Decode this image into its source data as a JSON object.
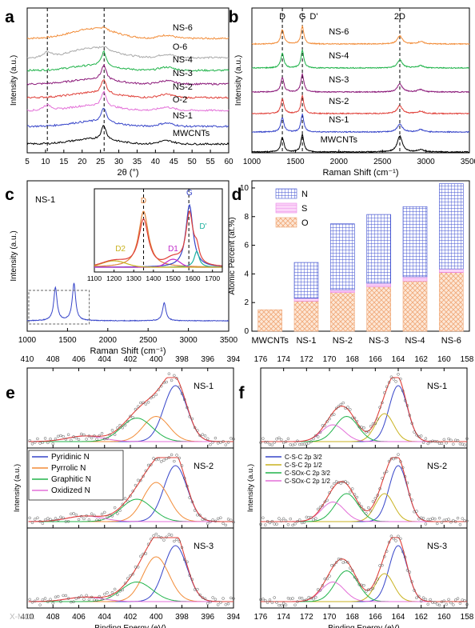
{
  "figure": {
    "watermark": "X-MOL"
  },
  "chart_data": [
    {
      "id": "a",
      "panel_label": "a",
      "type": "line",
      "xlabel": "2θ (°)",
      "ylabel": "Intensity (a.u.)",
      "xlim": [
        5,
        60
      ],
      "xticks": [
        5,
        10,
        15,
        20,
        25,
        30,
        35,
        40,
        45,
        50,
        55,
        60
      ],
      "y_ticks_shown": false,
      "dashed_lines_x": [
        10.5,
        26
      ],
      "series": [
        {
          "name": "NS-6",
          "color": "#F28C38",
          "label_at": [
            46,
            "above"
          ]
        },
        {
          "name": "O-6",
          "color": "#A9A9A9",
          "label_at": [
            46,
            "above"
          ]
        },
        {
          "name": "NS-4",
          "color": "#20B34A",
          "label_at": [
            46,
            "above"
          ]
        },
        {
          "name": "NS-3",
          "color": "#8B1A7A",
          "label_at": [
            46,
            "above"
          ]
        },
        {
          "name": "NS-2",
          "color": "#E0413A",
          "label_at": [
            46,
            "above"
          ]
        },
        {
          "name": "O-2",
          "color": "#E36FD8",
          "label_at": [
            46,
            "above"
          ]
        },
        {
          "name": "NS-1",
          "color": "#3745C9",
          "label_at": [
            46,
            "above"
          ]
        },
        {
          "name": "MWCNTs",
          "color": "#000000",
          "label_at": [
            46,
            "above"
          ]
        }
      ]
    },
    {
      "id": "b",
      "panel_label": "b",
      "type": "line",
      "xlabel": "Raman Shift (cm⁻¹)",
      "ylabel": "Intensity (a.u.)",
      "xlim": [
        1000,
        3500
      ],
      "xticks": [
        1000,
        1500,
        2000,
        2500,
        3000,
        3500
      ],
      "y_ticks_shown": false,
      "dashed_lines_x": [
        1350,
        1580,
        2700
      ],
      "peak_annotations": [
        {
          "label": "D",
          "x": 1350
        },
        {
          "label": "G",
          "x": 1580
        },
        {
          "label": "D'",
          "x": 1620
        },
        {
          "label": "2D",
          "x": 2700
        }
      ],
      "series": [
        {
          "name": "NS-6",
          "color": "#F28C38"
        },
        {
          "name": "NS-4",
          "color": "#20B34A"
        },
        {
          "name": "NS-3",
          "color": "#8B1A7A"
        },
        {
          "name": "NS-2",
          "color": "#E0413A"
        },
        {
          "name": "NS-1",
          "color": "#3745C9"
        },
        {
          "name": "MWCNTs",
          "color": "#000000"
        }
      ]
    },
    {
      "id": "c",
      "panel_label": "c",
      "type": "line",
      "sample_label": "NS-1",
      "xlabel": "Raman Shift (cm⁻¹)",
      "ylabel": "Intensity (a.u.)",
      "xlim": [
        1000,
        3500
      ],
      "xticks": [
        1000,
        1500,
        2000,
        2500,
        3000,
        3500
      ],
      "series": [
        {
          "name": "NS-1",
          "color": "#3745C9",
          "peaks": [
            {
              "x": 1350,
              "h": 0.55
            },
            {
              "x": 1580,
              "h": 0.62
            },
            {
              "x": 2700,
              "h": 0.3
            }
          ]
        }
      ],
      "inset": {
        "xlim": [
          1100,
          1750
        ],
        "xticks": [
          1100,
          1200,
          1300,
          1400,
          1500,
          1600,
          1700
        ],
        "dashed_lines_x": [
          1350,
          1580
        ],
        "components": [
          {
            "label": "D",
            "x": 1350,
            "color": "#E0823A"
          },
          {
            "label": "G",
            "x": 1583,
            "color": "#3745C9"
          },
          {
            "label": "D'",
            "x": 1620,
            "color": "#20B3A0"
          },
          {
            "label": "D1",
            "x": 1500,
            "color": "#C02AC9"
          },
          {
            "label": "D2",
            "x": 1200,
            "color": "#C9B21F"
          }
        ],
        "fit_color": "#E0413A"
      }
    },
    {
      "id": "d",
      "panel_label": "d",
      "type": "bar",
      "ylabel": "Atomic Percent (at.%)",
      "ylim": [
        0,
        10.5
      ],
      "yticks": [
        0,
        2,
        4,
        6,
        8,
        10
      ],
      "categories": [
        "MWCNTs",
        "NS-1",
        "NS-2",
        "NS-3",
        "NS-4",
        "NS-6"
      ],
      "series": [
        {
          "name": "O",
          "color": "#F0A878",
          "values": [
            1.5,
            2.1,
            2.7,
            3.1,
            3.5,
            4.1
          ]
        },
        {
          "name": "S",
          "color": "#E986E6",
          "values": [
            0.0,
            0.2,
            0.2,
            0.25,
            0.3,
            0.25
          ]
        },
        {
          "name": "N",
          "color": "#3E4FD0",
          "values": [
            0.0,
            2.5,
            4.6,
            4.8,
            4.9,
            5.95
          ]
        }
      ],
      "legend": [
        "N",
        "S",
        "O"
      ]
    },
    {
      "id": "e",
      "panel_label": "e",
      "type": "line",
      "xlabel": "Binding Energy (eV)",
      "ylabel": "Intensity (a.u.)",
      "xlim": [
        410,
        394
      ],
      "xticks": [
        410,
        408,
        406,
        404,
        402,
        400,
        398,
        396,
        394
      ],
      "legend": [
        "Pyridinic N",
        "Pyrrolic N",
        "Graphitic N",
        "Oxidized N"
      ],
      "components": [
        {
          "name": "Pyridinic N",
          "color": "#3745C9",
          "center": 398.5,
          "width": 0.9
        },
        {
          "name": "Pyrrolic N",
          "color": "#F28C38",
          "center": 400.0,
          "width": 1.0
        },
        {
          "name": "Graphitic N",
          "color": "#20B34A",
          "center": 401.5,
          "width": 1.2
        },
        {
          "name": "Oxidized N",
          "color": "#E36FD8",
          "center": 405.5,
          "width": 1.4
        }
      ],
      "subpanels": [
        {
          "name": "NS-1",
          "amps": [
            1.0,
            0.45,
            0.42,
            0.1
          ]
        },
        {
          "name": "NS-2",
          "amps": [
            1.0,
            0.7,
            0.4,
            0.1
          ]
        },
        {
          "name": "NS-3",
          "amps": [
            1.0,
            0.8,
            0.35,
            0.08
          ]
        }
      ]
    },
    {
      "id": "f",
      "panel_label": "f",
      "type": "line",
      "xlabel": "Binding Energy (eV)",
      "ylabel": "Intensity (a.u.)",
      "xlim": [
        176,
        158
      ],
      "xticks": [
        176,
        174,
        172,
        170,
        168,
        166,
        164,
        162,
        160,
        158
      ],
      "legend": [
        "C-S-C 2p 3/2",
        "C-S-C 2p 1/2",
        "C-SOx-C 2p 3/2",
        "C-SOx-C 2p 1/2"
      ],
      "components": [
        {
          "name": "C-S-C 2p 3/2",
          "color": "#3745C9",
          "center": 164.0,
          "width": 0.8
        },
        {
          "name": "C-S-C 2p 1/2",
          "color": "#C9B21F",
          "center": 165.2,
          "width": 0.8
        },
        {
          "name": "C-SOx-C 2p 3/2",
          "color": "#20B34A",
          "center": 168.5,
          "width": 1.0
        },
        {
          "name": "C-SOx-C 2p 1/2",
          "color": "#E36FD8",
          "center": 169.7,
          "width": 1.0
        }
      ],
      "subpanels": [
        {
          "name": "NS-1",
          "amps": [
            1.0,
            0.5,
            0.45,
            0.3
          ]
        },
        {
          "name": "NS-2",
          "amps": [
            1.0,
            0.5,
            0.5,
            0.35
          ]
        },
        {
          "name": "NS-3",
          "amps": [
            1.0,
            0.5,
            0.55,
            0.35
          ]
        }
      ]
    }
  ]
}
